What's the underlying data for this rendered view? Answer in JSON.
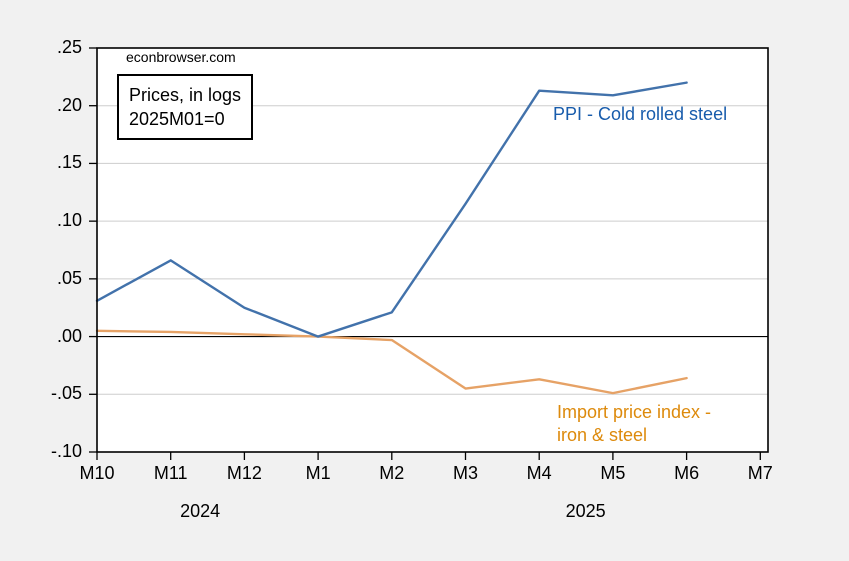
{
  "watermark": "econbrowser.com",
  "annotation_box": {
    "line1": "Prices, in logs",
    "line2": "2025M01=0"
  },
  "series_labels": {
    "ppi": {
      "text": "PPI - Cold rolled steel",
      "color": "#185cac"
    },
    "import": {
      "line1": "Import price index -",
      "line2": "iron & steel",
      "color": "#dd8a0c"
    }
  },
  "chart_data": {
    "type": "line",
    "title": "",
    "xlabel": "",
    "ylabel": "",
    "categories": [
      "M10",
      "M11",
      "M12",
      "M1",
      "M2",
      "M3",
      "M4",
      "M5",
      "M6",
      "M7"
    ],
    "year_labels": [
      {
        "text": "2024",
        "x_index": 1.4
      },
      {
        "text": "2025",
        "x_index": 6.63
      }
    ],
    "series": [
      {
        "id": "import-price-index",
        "name": "Import price index - iron & steel",
        "color": "#e6a266",
        "values": [
          0.005,
          0.004,
          0.002,
          0.0,
          -0.003,
          -0.045,
          -0.037,
          -0.049,
          -0.036
        ]
      },
      {
        "id": "ppi-cold-rolled-steel",
        "name": "PPI - Cold rolled steel",
        "color": "#4272ab",
        "values": [
          0.031,
          0.066,
          0.025,
          0.0,
          0.021,
          0.115,
          0.213,
          0.209,
          0.22
        ]
      }
    ],
    "ylim": [
      -0.1,
      0.25
    ],
    "y_ticks": [
      {
        "value": 0.25,
        "label": ".25"
      },
      {
        "value": 0.2,
        "label": ".20"
      },
      {
        "value": 0.15,
        "label": ".15"
      },
      {
        "value": 0.1,
        "label": ".10"
      },
      {
        "value": 0.05,
        "label": ".05"
      },
      {
        "value": 0.0,
        "label": ".00"
      },
      {
        "value": -0.05,
        "label": "-.05"
      },
      {
        "value": -0.1,
        "label": "-.10"
      }
    ],
    "grid": "horizontal",
    "legend_position": "inline-annotations",
    "colors": {
      "background": "#f1f1f1",
      "plot_background": "#ffffff",
      "gridline": "#cdcdcd",
      "zero_line": "#000000",
      "frame": "#000000"
    }
  }
}
